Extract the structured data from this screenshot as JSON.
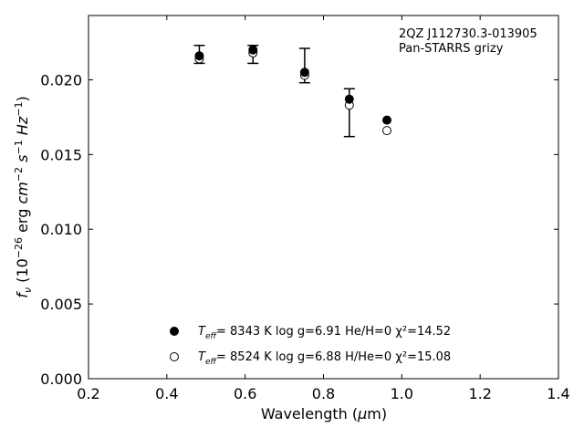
{
  "chart_data": {
    "type": "scatter",
    "title": "",
    "annotation": [
      "2QZ J112730.3-013905",
      "Pan-STARRS grizy"
    ],
    "xlabel": "Wavelength (μm)",
    "ylabel": "f_ν (10^-26 erg cm^-2 s^-1 Hz^-1)",
    "xlim": [
      0.2,
      1.4
    ],
    "ylim": [
      0.0,
      0.0243
    ],
    "xticks": [
      "0.2",
      "0.4",
      "0.6",
      "0.8",
      "1.0",
      "1.2",
      "1.4"
    ],
    "xtick_values": [
      0.2,
      0.4,
      0.6,
      0.8,
      1.0,
      1.2,
      1.4
    ],
    "yticks": [
      "0.000",
      "0.005",
      "0.010",
      "0.015",
      "0.020"
    ],
    "ytick_values": [
      0.0,
      0.005,
      0.01,
      0.015,
      0.02
    ],
    "grid": false,
    "legend_position": "bottom-center",
    "observed": {
      "x": [
        0.483,
        0.62,
        0.752,
        0.866,
        0.962
      ],
      "y": [
        0.0217,
        0.0217,
        0.0209,
        0.0178,
        null
      ],
      "err_low": [
        0.0006,
        0.0006,
        0.0011,
        0.0016,
        null
      ],
      "err_high": [
        0.0006,
        0.0006,
        0.0012,
        0.0016,
        null
      ]
    },
    "series": [
      {
        "legend_values": [
          "8343 K",
          "log g=6.91",
          "He/H=0",
          "χ²=14.52"
        ],
        "marker": "filled-circle",
        "x": [
          0.483,
          0.62,
          0.752,
          0.866,
          0.962
        ],
        "y": [
          0.0216,
          0.022,
          0.0205,
          0.0187,
          0.0173
        ]
      },
      {
        "legend_values": [
          "8524 K",
          "log g=6.88",
          "H/He=0",
          "χ²=15.08"
        ],
        "marker": "open-circle",
        "x": [
          0.483,
          0.62,
          0.752,
          0.866,
          0.962
        ],
        "y": [
          0.0214,
          0.0218,
          0.0203,
          0.0183,
          0.0166
        ]
      }
    ]
  }
}
